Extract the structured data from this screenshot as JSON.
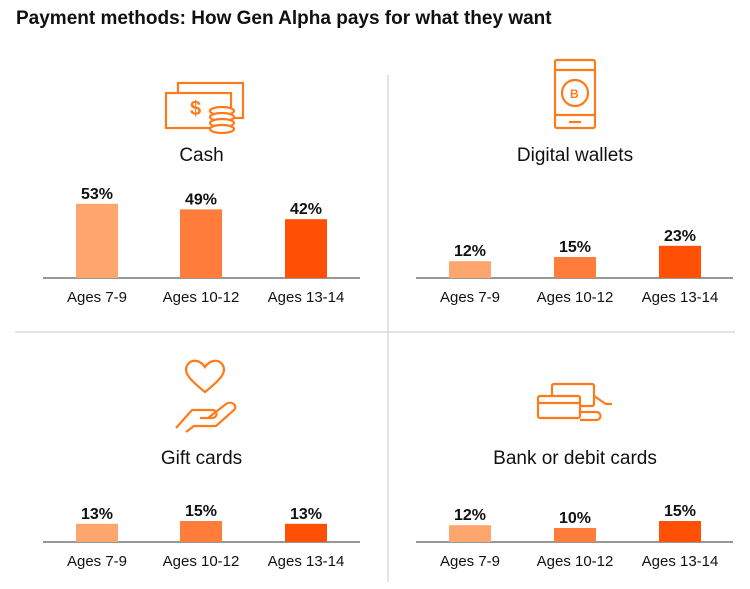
{
  "title": "Payment methods: How Gen Alpha pays for what they want",
  "colors": [
    "#FFA56E",
    "#FF7C3A",
    "#FF5005"
  ],
  "icon_color": "#FF7A1A",
  "chart_data": [
    {
      "type": "bar",
      "title": "Cash",
      "icon": "cash-coins-icon",
      "categories": [
        "Ages 7-9",
        "Ages 10-12",
        "Ages 13-14"
      ],
      "values": [
        53,
        49,
        42
      ],
      "labels": [
        "53%",
        "49%",
        "42%"
      ],
      "ylim": [
        0,
        60
      ]
    },
    {
      "type": "bar",
      "title": "Digital wallets",
      "icon": "phone-bitcoin-icon",
      "categories": [
        "Ages 7-9",
        "Ages 10-12",
        "Ages 13-14"
      ],
      "values": [
        12,
        15,
        23
      ],
      "labels": [
        "12%",
        "15%",
        "23%"
      ],
      "ylim": [
        0,
        60
      ]
    },
    {
      "type": "bar",
      "title": "Gift cards",
      "icon": "heart-hand-icon",
      "categories": [
        "Ages 7-9",
        "Ages 10-12",
        "Ages 13-14"
      ],
      "values": [
        13,
        15,
        13
      ],
      "labels": [
        "13%",
        "15%",
        "13%"
      ],
      "ylim": [
        0,
        60
      ]
    },
    {
      "type": "bar",
      "title": "Bank or debit cards",
      "icon": "cards-hand-icon",
      "categories": [
        "Ages 7-9",
        "Ages 10-12",
        "Ages 13-14"
      ],
      "values": [
        12,
        10,
        15
      ],
      "labels": [
        "12%",
        "10%",
        "15%"
      ],
      "ylim": [
        0,
        60
      ]
    }
  ]
}
